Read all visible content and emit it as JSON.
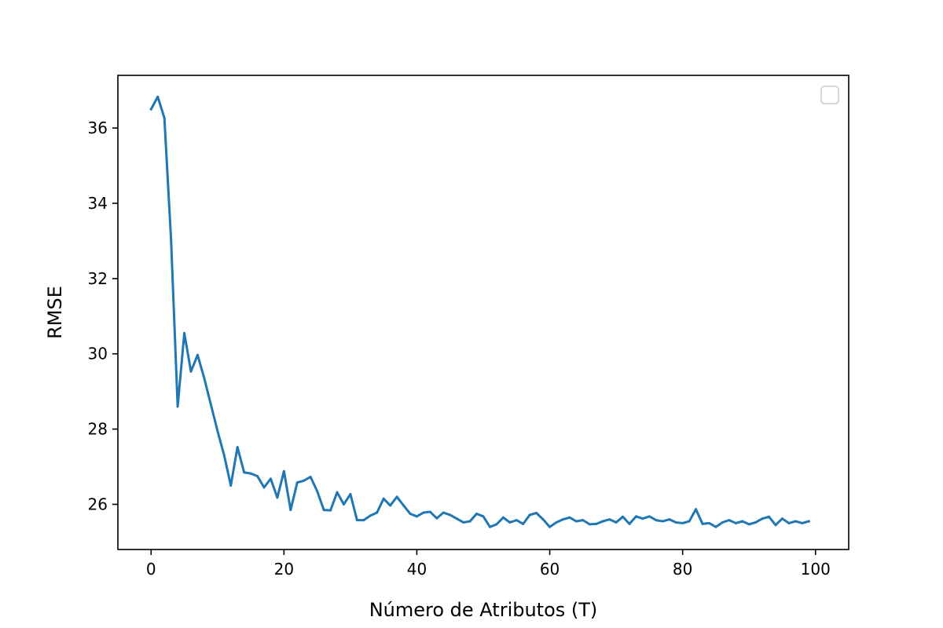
{
  "chart_data": {
    "type": "line",
    "title": "",
    "xlabel": "Número de Atributos (T)",
    "ylabel": "RMSE",
    "xlim": [
      -5,
      105
    ],
    "ylim": [
      24.8,
      37.4
    ],
    "x_ticks": [
      0,
      20,
      40,
      60,
      80,
      100
    ],
    "x_tick_labels": [
      "0",
      "20",
      "40",
      "60",
      "80",
      "100"
    ],
    "y_ticks": [
      26,
      28,
      30,
      32,
      34,
      36
    ],
    "y_tick_labels": [
      "26",
      "28",
      "30",
      "32",
      "34",
      "36"
    ],
    "grid": false,
    "legend": {
      "placement": "top-right",
      "entries": []
    },
    "series": [
      {
        "color": "#1f77b4",
        "x": [
          0,
          1,
          2,
          3,
          4,
          5,
          6,
          7,
          8,
          9,
          10,
          11,
          12,
          13,
          14,
          15,
          16,
          17,
          18,
          19,
          20,
          21,
          22,
          23,
          24,
          25,
          26,
          27,
          28,
          29,
          30,
          31,
          32,
          33,
          34,
          35,
          36,
          37,
          38,
          39,
          40,
          41,
          42,
          43,
          44,
          45,
          46,
          47,
          48,
          49,
          50,
          51,
          52,
          53,
          54,
          55,
          56,
          57,
          58,
          59,
          60,
          61,
          62,
          63,
          64,
          65,
          66,
          67,
          68,
          69,
          70,
          71,
          72,
          73,
          74,
          75,
          76,
          77,
          78,
          79,
          80,
          81,
          82,
          83,
          84,
          85,
          86,
          87,
          88,
          89,
          90,
          91,
          92,
          93,
          94,
          95,
          96,
          97,
          98,
          99
        ],
        "values": [
          36.5,
          36.83,
          36.27,
          33.05,
          28.6,
          30.55,
          29.53,
          29.97,
          29.35,
          28.65,
          27.95,
          27.3,
          26.5,
          27.52,
          26.85,
          26.82,
          26.75,
          26.45,
          26.68,
          26.18,
          26.88,
          25.85,
          26.58,
          26.63,
          26.73,
          26.35,
          25.85,
          25.84,
          26.32,
          26.0,
          26.27,
          25.58,
          25.58,
          25.7,
          25.78,
          26.15,
          25.97,
          26.2,
          25.97,
          25.75,
          25.68,
          25.78,
          25.8,
          25.63,
          25.78,
          25.72,
          25.62,
          25.52,
          25.55,
          25.75,
          25.68,
          25.4,
          25.47,
          25.65,
          25.52,
          25.58,
          25.48,
          25.72,
          25.77,
          25.6,
          25.4,
          25.52,
          25.6,
          25.65,
          25.55,
          25.58,
          25.47,
          25.48,
          25.55,
          25.6,
          25.52,
          25.67,
          25.48,
          25.68,
          25.62,
          25.68,
          25.58,
          25.55,
          25.6,
          25.52,
          25.5,
          25.55,
          25.87,
          25.48,
          25.5,
          25.4,
          25.52,
          25.58,
          25.5,
          25.55,
          25.47,
          25.52,
          25.62,
          25.67,
          25.45,
          25.62,
          25.5,
          25.55,
          25.5,
          25.55
        ]
      }
    ]
  }
}
